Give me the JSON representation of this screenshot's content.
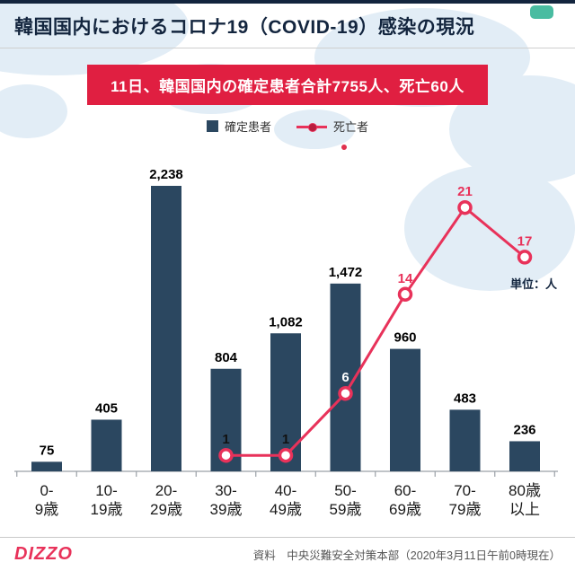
{
  "page": {
    "title": "韓国国内におけるコロナ19（COVID-19）感染の現況",
    "banner": "11日、韓国国内の確定患者合計7755人、死亡60人",
    "unit_label": "単位：人",
    "footer": {
      "logo": "DIZZO",
      "source": "資料　中央災難安全対策本部（2020年3月11日午前0時現在）"
    }
  },
  "legend": [
    {
      "label": "確定患者",
      "type": "bar",
      "color": "#2b4760"
    },
    {
      "label": "死亡者",
      "type": "line",
      "color": "#e8325a"
    }
  ],
  "colors": {
    "bar": "#2b4760",
    "death_line": "#e8325a",
    "banner_bg": "#e01f41",
    "title_navy": "#13253e",
    "axis": "#9aa0a6"
  },
  "chart_data": {
    "type": "bar",
    "title": "韓国国内におけるコロナ19（COVID-19）感染の現況",
    "categories": [
      "0-9歳",
      "10-19歳",
      "20-29歳",
      "30-39歳",
      "40-49歳",
      "50-59歳",
      "60-69歳",
      "70-79歳",
      "80歳以上"
    ],
    "category_lines": [
      [
        "0-",
        "9歳"
      ],
      [
        "10-",
        "19歳"
      ],
      [
        "20-",
        "29歳"
      ],
      [
        "30-",
        "39歳"
      ],
      [
        "40-",
        "49歳"
      ],
      [
        "50-",
        "59歳"
      ],
      [
        "60-",
        "69歳"
      ],
      [
        "70-",
        "79歳"
      ],
      [
        "80歳",
        "以上"
      ]
    ],
    "series": [
      {
        "name": "確定患者",
        "type": "bar",
        "color": "#2b4760",
        "values": [
          75,
          405,
          2238,
          804,
          1082,
          1472,
          960,
          483,
          236
        ]
      },
      {
        "name": "死亡者",
        "type": "line",
        "color": "#e8325a",
        "values": [
          null,
          null,
          null,
          1,
          1,
          6,
          14,
          21,
          17
        ],
        "label_colors": [
          null,
          null,
          null,
          "#111111",
          "#111111",
          "#ffffff",
          "#e8325a",
          "#e8325a",
          "#e8325a"
        ]
      }
    ],
    "ylabel": "単位：人",
    "legend_position": "top",
    "grid": false
  }
}
